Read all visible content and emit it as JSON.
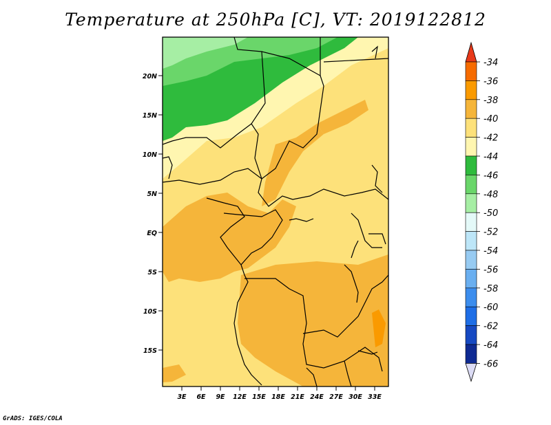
{
  "title": "Temperature at 250hPa [C], VT: 2019122812",
  "credit": "GrADS: IGES/COLA",
  "map": {
    "lat_labels": [
      "20N",
      "15N",
      "10N",
      "5N",
      "EQ",
      "5S",
      "10S",
      "15S"
    ],
    "lon_labels": [
      "3E",
      "6E",
      "9E",
      "12E",
      "15E",
      "18E",
      "21E",
      "24E",
      "27E",
      "30E",
      "33E"
    ]
  },
  "colorbar": {
    "labels": [
      "-34",
      "-36",
      "-38",
      "-40",
      "-42",
      "-44",
      "-46",
      "-48",
      "-50",
      "-52",
      "-54",
      "-56",
      "-58",
      "-60",
      "-62",
      "-64",
      "-66"
    ],
    "colors": [
      "#e8391a",
      "#f66b00",
      "#fa9a00",
      "#f5b53a",
      "#fde17a",
      "#fff6b0",
      "#2fbb3d",
      "#6ad66a",
      "#a6eea4",
      "#e4f9f8",
      "#bde6f8",
      "#97cbf2",
      "#6aaff0",
      "#3c8ded",
      "#1e6ee6",
      "#1649c2",
      "#0e2a92",
      "#dcdcf5"
    ]
  }
}
